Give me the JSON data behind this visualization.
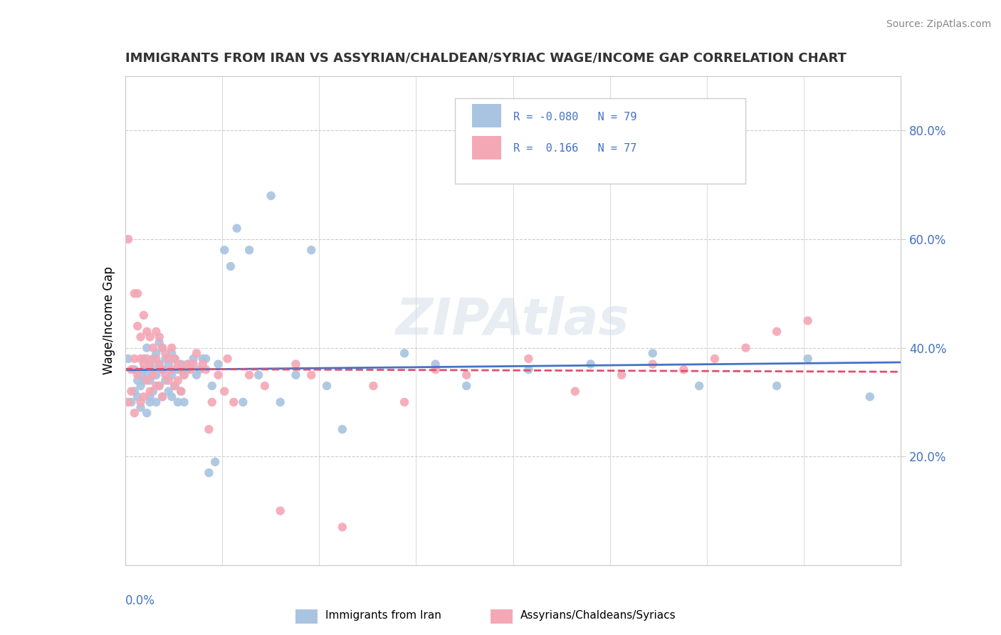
{
  "title": "IMMIGRANTS FROM IRAN VS ASSYRIAN/CHALDEAN/SYRIAC WAGE/INCOME GAP CORRELATION CHART",
  "source": "Source: ZipAtlas.com",
  "ylabel": "Wage/Income Gap",
  "ylabel_right_ticks": [
    "20.0%",
    "40.0%",
    "60.0%",
    "80.0%"
  ],
  "ylabel_right_vals": [
    0.2,
    0.4,
    0.6,
    0.8
  ],
  "watermark": "ZIPAtlas",
  "legend_entries": [
    {
      "label": "Immigrants from Iran",
      "color": "#a8c4e0",
      "R": -0.08,
      "N": 79
    },
    {
      "label": "Assyrians/Chaldeans/Syriacs",
      "color": "#f4a7b5",
      "R": 0.166,
      "N": 77
    }
  ],
  "blue_scatter_x": [
    0.001,
    0.002,
    0.003,
    0.003,
    0.004,
    0.004,
    0.005,
    0.005,
    0.005,
    0.006,
    0.006,
    0.006,
    0.007,
    0.007,
    0.007,
    0.008,
    0.008,
    0.008,
    0.008,
    0.009,
    0.009,
    0.009,
    0.01,
    0.01,
    0.01,
    0.011,
    0.011,
    0.011,
    0.012,
    0.012,
    0.012,
    0.013,
    0.013,
    0.014,
    0.014,
    0.015,
    0.015,
    0.015,
    0.016,
    0.016,
    0.017,
    0.017,
    0.018,
    0.018,
    0.019,
    0.019,
    0.02,
    0.021,
    0.022,
    0.023,
    0.024,
    0.025,
    0.026,
    0.027,
    0.028,
    0.029,
    0.03,
    0.032,
    0.034,
    0.036,
    0.038,
    0.04,
    0.043,
    0.047,
    0.05,
    0.055,
    0.06,
    0.065,
    0.07,
    0.09,
    0.1,
    0.11,
    0.13,
    0.15,
    0.17,
    0.185,
    0.21,
    0.22,
    0.24
  ],
  "blue_scatter_y": [
    0.38,
    0.3,
    0.36,
    0.32,
    0.34,
    0.31,
    0.35,
    0.33,
    0.29,
    0.34,
    0.36,
    0.38,
    0.4,
    0.35,
    0.28,
    0.37,
    0.34,
    0.31,
    0.3,
    0.36,
    0.38,
    0.32,
    0.39,
    0.35,
    0.3,
    0.41,
    0.37,
    0.33,
    0.4,
    0.36,
    0.31,
    0.38,
    0.34,
    0.37,
    0.32,
    0.39,
    0.35,
    0.31,
    0.38,
    0.33,
    0.36,
    0.3,
    0.37,
    0.32,
    0.35,
    0.3,
    0.36,
    0.37,
    0.38,
    0.35,
    0.36,
    0.38,
    0.38,
    0.17,
    0.33,
    0.19,
    0.37,
    0.58,
    0.55,
    0.62,
    0.3,
    0.58,
    0.35,
    0.68,
    0.3,
    0.35,
    0.58,
    0.33,
    0.25,
    0.39,
    0.37,
    0.33,
    0.36,
    0.37,
    0.39,
    0.33,
    0.33,
    0.38,
    0.31
  ],
  "pink_scatter_x": [
    0.001,
    0.001,
    0.002,
    0.002,
    0.003,
    0.003,
    0.003,
    0.004,
    0.004,
    0.004,
    0.005,
    0.005,
    0.005,
    0.006,
    0.006,
    0.006,
    0.007,
    0.007,
    0.007,
    0.008,
    0.008,
    0.008,
    0.009,
    0.009,
    0.01,
    0.01,
    0.01,
    0.011,
    0.011,
    0.011,
    0.012,
    0.012,
    0.012,
    0.013,
    0.013,
    0.014,
    0.014,
    0.015,
    0.015,
    0.016,
    0.016,
    0.017,
    0.017,
    0.018,
    0.018,
    0.019,
    0.02,
    0.021,
    0.022,
    0.023,
    0.025,
    0.026,
    0.027,
    0.028,
    0.03,
    0.032,
    0.033,
    0.035,
    0.04,
    0.045,
    0.05,
    0.055,
    0.06,
    0.07,
    0.08,
    0.09,
    0.1,
    0.11,
    0.13,
    0.145,
    0.16,
    0.17,
    0.18,
    0.19,
    0.2,
    0.21,
    0.22
  ],
  "pink_scatter_y": [
    0.6,
    0.3,
    0.36,
    0.32,
    0.5,
    0.38,
    0.28,
    0.44,
    0.35,
    0.5,
    0.38,
    0.42,
    0.3,
    0.46,
    0.37,
    0.31,
    0.43,
    0.38,
    0.34,
    0.42,
    0.37,
    0.32,
    0.4,
    0.35,
    0.43,
    0.38,
    0.33,
    0.42,
    0.37,
    0.33,
    0.4,
    0.36,
    0.31,
    0.39,
    0.35,
    0.38,
    0.34,
    0.4,
    0.36,
    0.38,
    0.33,
    0.37,
    0.34,
    0.36,
    0.32,
    0.35,
    0.37,
    0.36,
    0.37,
    0.39,
    0.37,
    0.36,
    0.25,
    0.3,
    0.35,
    0.32,
    0.38,
    0.3,
    0.35,
    0.33,
    0.1,
    0.37,
    0.35,
    0.07,
    0.33,
    0.3,
    0.36,
    0.35,
    0.38,
    0.32,
    0.35,
    0.37,
    0.36,
    0.38,
    0.4,
    0.43,
    0.45
  ],
  "xlim": [
    0.0,
    0.25
  ],
  "ylim": [
    0.0,
    0.9
  ],
  "blue_line_color": "#4472c4",
  "pink_line_color": "#e05070",
  "scatter_blue_color": "#a8c4e0",
  "scatter_pink_color": "#f4a7b5",
  "background_color": "#ffffff",
  "grid_color": "#cccccc"
}
